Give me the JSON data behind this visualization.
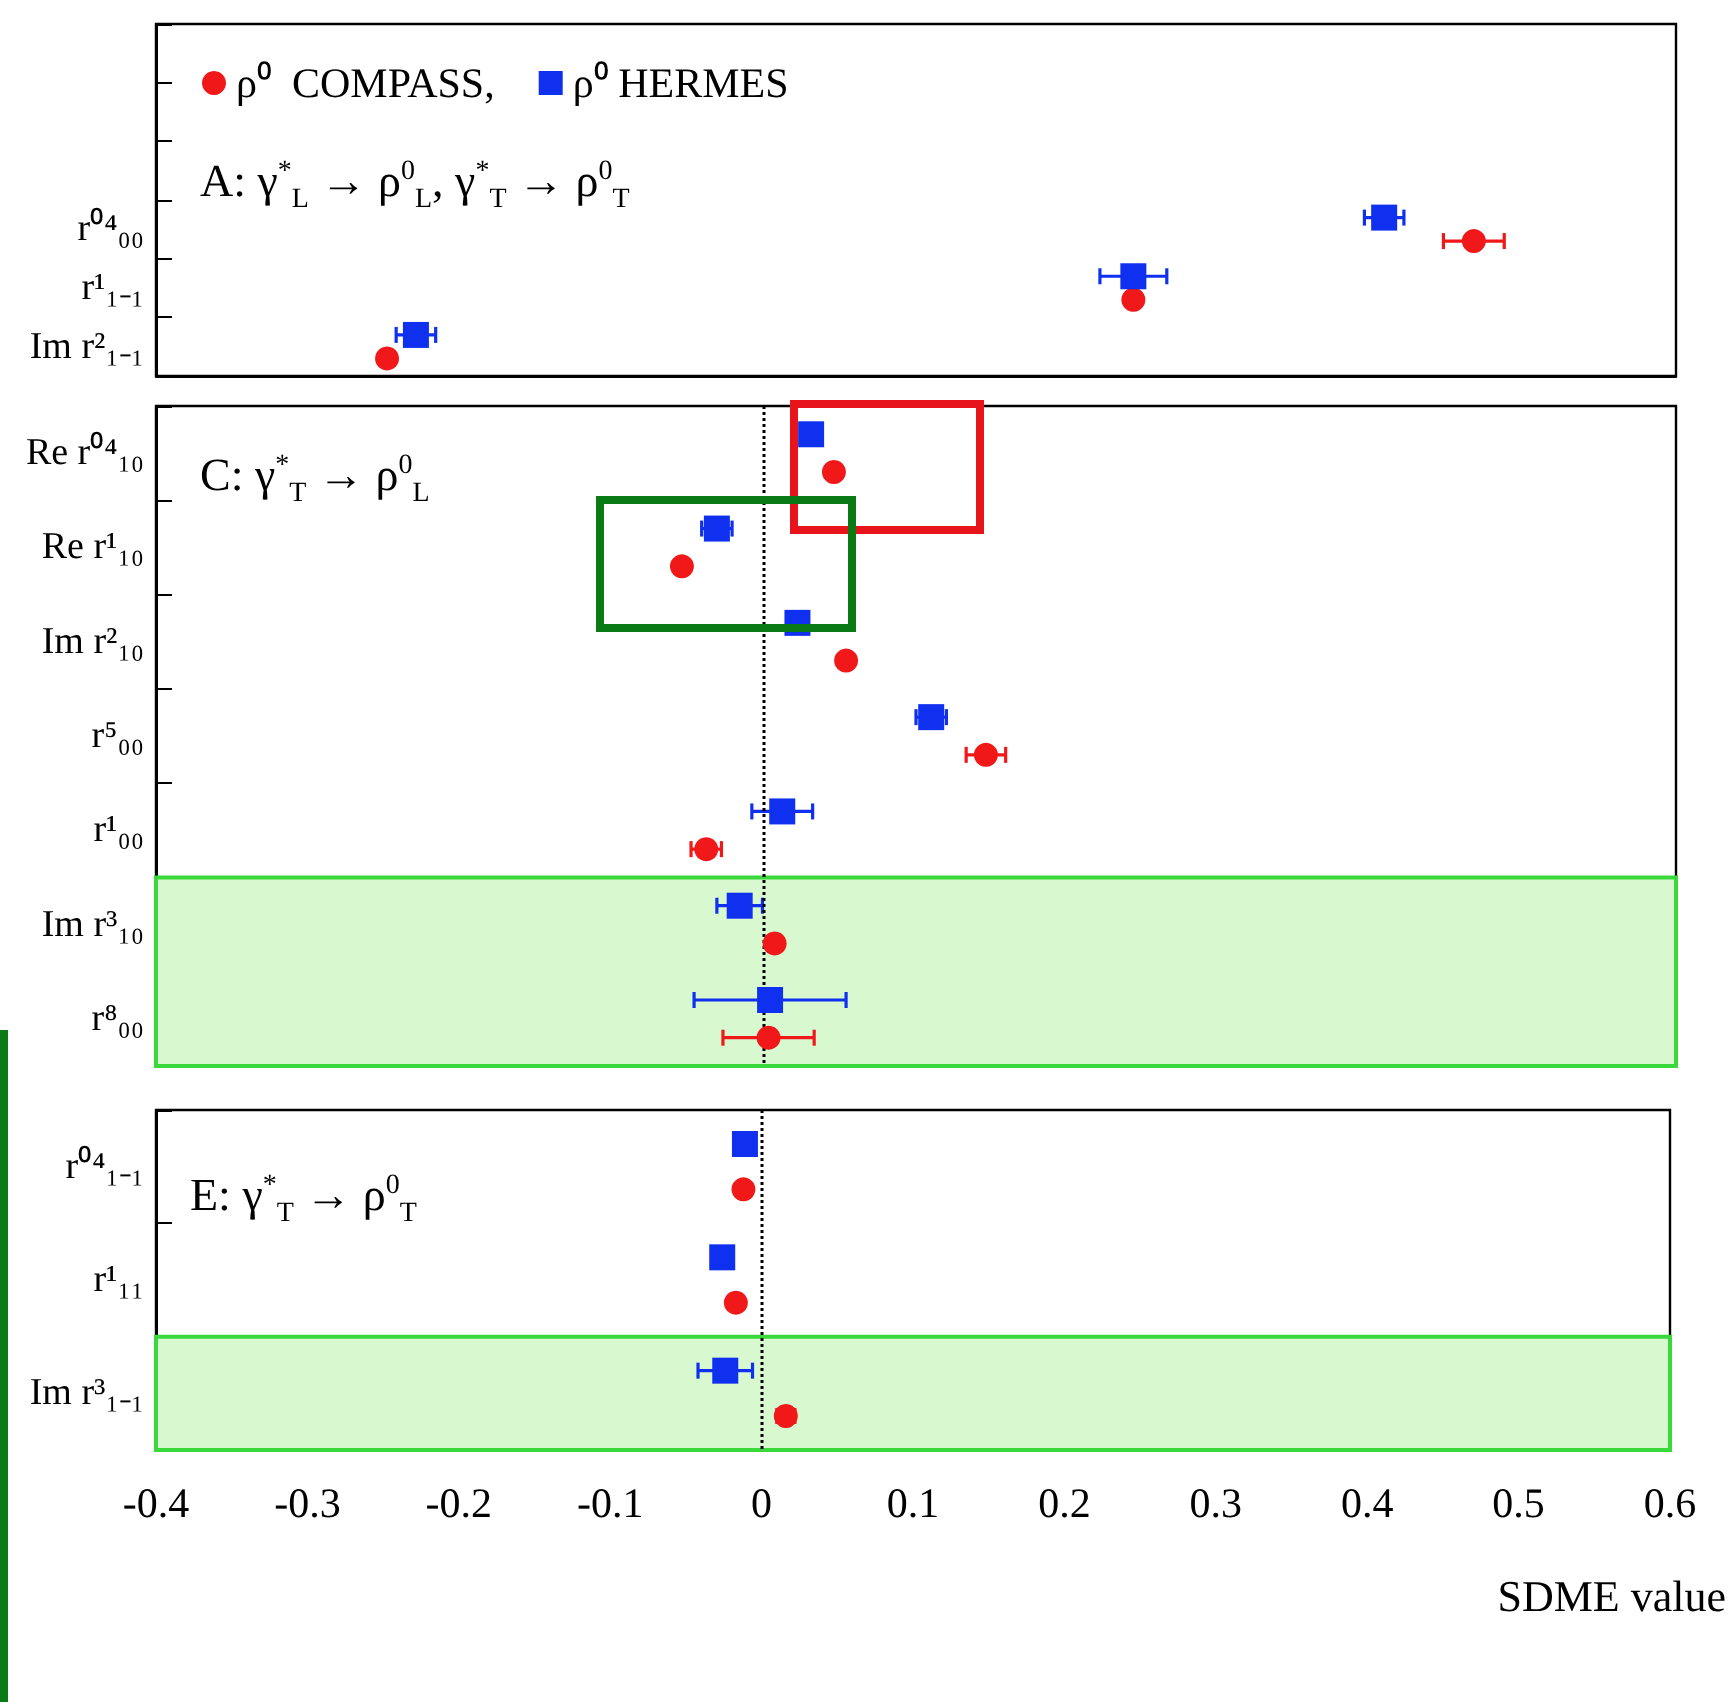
{
  "chart_data": [
    {
      "type": "scatter",
      "annotations": [
        "A: γ$^{*}$$_{L}$ → ρ$^{0}$$_{L}$,   γ$^{*}$$_{T}$ → ρ$^{0}$$_{T}$"
      ],
      "categories": [
        null,
        null,
        null,
        "r⁰⁴₀₀",
        "r¹₁₋₁",
        "Im r²₁₋₁"
      ],
      "series": [
        {
          "name": "ρ⁰  COMPASS,",
          "color": "#f01818",
          "marker": "circle",
          "values": [
            null,
            null,
            null,
            0.467,
            0.243,
            -0.248
          ],
          "errors": [
            null,
            null,
            null,
            0.02,
            null,
            null
          ]
        },
        {
          "name": "ρ⁰ HERMES",
          "color": "#1030f0",
          "marker": "square",
          "values": [
            null,
            null,
            null,
            0.408,
            0.243,
            -0.229
          ],
          "errors": [
            null,
            null,
            null,
            0.013,
            0.022,
            0.013
          ]
        }
      ],
      "orientation": "horizontal",
      "xlim": [
        -0.4,
        0.6
      ],
      "tick_labels": "y",
      "legend": "top left"
    },
    {
      "type": "scatter",
      "annotations": [
        "C: γ$^{*}$$_{T}$ → ρ$^{0}$$_{L}$"
      ],
      "categories": [
        "Re r⁰⁴₁₀",
        "Re r¹₁₀",
        "Im r²₁₀",
        "r⁵₀₀",
        "r¹₀₀",
        "Im r³₁₀",
        "r⁸₀₀"
      ],
      "series": [
        {
          "color": "#f01818",
          "marker": "circle",
          "values": [
            0.046,
            -0.054,
            0.054,
            0.146,
            -0.038,
            0.007,
            0.003
          ],
          "errors": [
            null,
            null,
            null,
            0.013,
            0.01,
            null,
            0.03
          ]
        },
        {
          "color": "#1030f0",
          "marker": "square",
          "values": [
            0.031,
            -0.031,
            0.022,
            0.11,
            0.012,
            -0.016,
            0.004
          ],
          "errors": [
            null,
            0.01,
            null,
            0.01,
            0.02,
            0.015,
            0.05
          ]
        }
      ],
      "orientation": "horizontal",
      "xlim": [
        -0.4,
        0.6
      ],
      "tick_labels": "y",
      "ref_lines": [
        {
          "axis": "x",
          "value": 0,
          "line_style": "dotted"
        }
      ],
      "bands": [
        {
          "axis": "y",
          "from": "Im r³₁₀",
          "to": "r⁸₀₀",
          "color": "#3ad83a"
        }
      ]
    },
    {
      "type": "scatter",
      "annotations": [
        "E: γ$^{*}$$_{T}$ → ρ$^{0}$$_{T}$"
      ],
      "xlabel": "SDME value",
      "categories": [
        "r⁰⁴₁₋₁",
        "r¹₁₁",
        "Im r³₁₋₁"
      ],
      "series": [
        {
          "color": "#f01818",
          "marker": "circle",
          "values": [
            -0.012,
            -0.017,
            0.016
          ],
          "errors": [
            null,
            null,
            0.006
          ]
        },
        {
          "color": "#1030f0",
          "marker": "square",
          "values": [
            -0.011,
            -0.026,
            -0.024
          ],
          "errors": [
            null,
            0.006,
            0.018
          ]
        }
      ],
      "orientation": "horizontal",
      "xlim": [
        -0.4,
        0.6
      ],
      "xticks": [
        -0.4,
        -0.3,
        -0.2,
        -0.1,
        0,
        0.1,
        0.2,
        0.3,
        0.4,
        0.5,
        0.6
      ],
      "ref_lines": [
        {
          "axis": "x",
          "value": 0,
          "line_style": "dotted"
        }
      ],
      "bands": [
        {
          "axis": "y",
          "from": "Im r³₁₋₁",
          "to": "Im r³₁₋₁",
          "color": "#3ad83a"
        }
      ]
    }
  ]
}
